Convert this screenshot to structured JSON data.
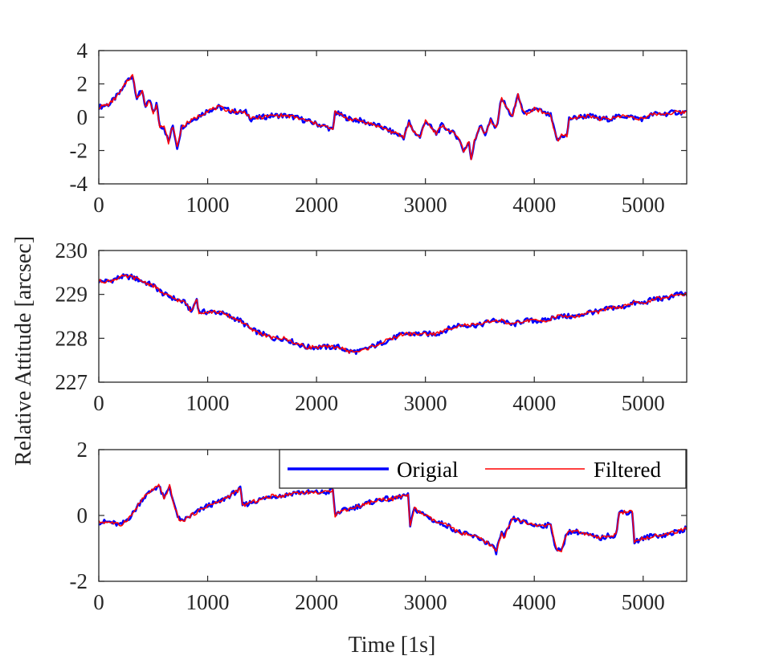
{
  "chart_data": {
    "type": "line",
    "ylabel": "Relative Attitude [arcsec]",
    "xlabel": "Time [1s]",
    "legend": {
      "placement": "top-right of bottom panel",
      "entries": [
        "Origial",
        "Filtered"
      ]
    },
    "colors": {
      "Origial": "#0000ff",
      "Filtered": "#ff0000"
    },
    "grid": false,
    "panels": [
      {
        "xlim": [
          0,
          5400
        ],
        "ylim": [
          -4,
          4
        ],
        "xticks": [
          0,
          1000,
          2000,
          3000,
          4000,
          5000
        ],
        "yticks": [
          -4,
          -2,
          0,
          2,
          4
        ],
        "series": [
          {
            "name": "Origial",
            "x": [
              0,
              100,
              200,
              260,
              310,
              350,
              400,
              430,
              470,
              500,
              530,
              560,
              600,
              640,
              680,
              720,
              760,
              800,
              850,
              900,
              1000,
              1100,
              1200,
              1300,
              1350,
              1400,
              1500,
              1600,
              1700,
              1800,
              1900,
              2000,
              2100,
              2150,
              2170,
              2200,
              2300,
              2400,
              2500,
              2600,
              2700,
              2800,
              2850,
              2870,
              2900,
              2950,
              3000,
              3050,
              3100,
              3150,
              3200,
              3300,
              3350,
              3400,
              3420,
              3450,
              3500,
              3550,
              3600,
              3650,
              3700,
              3750,
              3800,
              3850,
              3880,
              3920,
              3950,
              4000,
              4050,
              4100,
              4150,
              4200,
              4220,
              4250,
              4300,
              4320,
              4400,
              4500,
              4600,
              4700,
              4800,
              4900,
              5000,
              5100,
              5200,
              5300,
              5400
            ],
            "y": [
              0.6,
              0.8,
              1.5,
              2.2,
              2.5,
              1.2,
              1.6,
              0.6,
              1.0,
              0.2,
              0.8,
              -0.5,
              -0.6,
              -1.5,
              -0.5,
              -1.8,
              -0.6,
              -0.4,
              -0.2,
              0.0,
              0.4,
              0.6,
              0.4,
              0.3,
              0.3,
              -0.1,
              0.0,
              0.1,
              0.1,
              0.0,
              -0.2,
              -0.4,
              -0.6,
              -0.8,
              0.3,
              0.2,
              -0.1,
              -0.2,
              -0.4,
              -0.6,
              -0.9,
              -1.2,
              -0.3,
              -0.6,
              -0.9,
              -1.2,
              -0.2,
              -0.6,
              -1.0,
              -0.5,
              -0.7,
              -1.2,
              -2.0,
              -1.5,
              -2.6,
              -1.4,
              -0.5,
              -1.0,
              -0.2,
              -0.7,
              1.2,
              0.5,
              0.0,
              1.4,
              0.6,
              0.2,
              0.3,
              0.5,
              0.4,
              0.2,
              0.1,
              -1.2,
              -1.4,
              -1.1,
              -1.1,
              -0.1,
              0.0,
              0.1,
              -0.1,
              -0.1,
              0.1,
              0.0,
              -0.1,
              0.2,
              0.2,
              0.3,
              0.3
            ]
          }
        ]
      },
      {
        "xlim": [
          0,
          5400
        ],
        "ylim": [
          227,
          230
        ],
        "xticks": [
          0,
          1000,
          2000,
          3000,
          4000,
          5000
        ],
        "yticks": [
          227,
          228,
          229,
          230
        ],
        "series": [
          {
            "name": "Origial",
            "x": [
              0,
              100,
              200,
              300,
              400,
              500,
              600,
              700,
              800,
              850,
              900,
              920,
              1000,
              1100,
              1200,
              1300,
              1400,
              1500,
              1600,
              1700,
              1800,
              1900,
              2000,
              2100,
              2200,
              2300,
              2400,
              2500,
              2600,
              2700,
              2800,
              2900,
              3000,
              3100,
              3200,
              3300,
              3400,
              3500,
              3600,
              3700,
              3800,
              3900,
              4000,
              4100,
              4200,
              4300,
              4400,
              4500,
              4600,
              4700,
              4800,
              4900,
              5000,
              5100,
              5200,
              5300,
              5400
            ],
            "y": [
              229.3,
              229.3,
              229.4,
              229.4,
              229.3,
              229.2,
              229.0,
              228.9,
              228.8,
              228.6,
              228.9,
              228.6,
              228.6,
              228.6,
              228.5,
              228.4,
              228.2,
              228.1,
              228.0,
              228.0,
              227.9,
              227.8,
              227.8,
              227.8,
              227.8,
              227.7,
              227.7,
              227.8,
              227.9,
              228.0,
              228.1,
              228.1,
              228.1,
              228.1,
              228.2,
              228.3,
              228.3,
              228.3,
              228.4,
              228.4,
              228.3,
              228.4,
              228.4,
              228.4,
              228.5,
              228.5,
              228.5,
              228.6,
              228.6,
              228.7,
              228.7,
              228.8,
              228.8,
              228.9,
              228.9,
              229.0,
              229.0
            ]
          }
        ]
      },
      {
        "xlim": [
          0,
          5400
        ],
        "ylim": [
          -2,
          2
        ],
        "xticks": [
          0,
          1000,
          2000,
          3000,
          4000,
          5000
        ],
        "yticks": [
          -2,
          0,
          2
        ],
        "series": [
          {
            "name": "Origial",
            "x": [
              0,
              100,
              200,
              300,
              400,
              500,
              550,
              600,
              650,
              700,
              750,
              800,
              900,
              1000,
              1100,
              1200,
              1300,
              1320,
              1400,
              1500,
              1600,
              1700,
              1800,
              1900,
              2000,
              2100,
              2150,
              2170,
              2200,
              2300,
              2400,
              2500,
              2600,
              2700,
              2800,
              2840,
              2860,
              2900,
              3000,
              3100,
              3200,
              3300,
              3400,
              3500,
              3600,
              3650,
              3700,
              3720,
              3800,
              3900,
              4000,
              4100,
              4150,
              4200,
              4250,
              4300,
              4400,
              4500,
              4600,
              4700,
              4750,
              4780,
              4850,
              4900,
              4920,
              5000,
              5100,
              5200,
              5300,
              5400
            ],
            "y": [
              -0.2,
              -0.2,
              -0.3,
              0.0,
              0.5,
              0.8,
              0.9,
              0.5,
              0.9,
              0.2,
              -0.2,
              -0.1,
              0.1,
              0.3,
              0.4,
              0.6,
              0.8,
              0.3,
              0.4,
              0.5,
              0.6,
              0.6,
              0.7,
              0.7,
              0.7,
              0.7,
              0.8,
              0.0,
              0.1,
              0.2,
              0.3,
              0.4,
              0.5,
              0.5,
              0.6,
              0.6,
              -0.3,
              0.2,
              0.0,
              -0.2,
              -0.3,
              -0.5,
              -0.6,
              -0.7,
              -0.9,
              -1.1,
              -0.5,
              -0.7,
              -0.1,
              -0.2,
              -0.3,
              -0.3,
              -0.3,
              -1.0,
              -1.1,
              -0.5,
              -0.5,
              -0.6,
              -0.7,
              -0.6,
              -0.6,
              0.1,
              0.1,
              0.1,
              -0.8,
              -0.7,
              -0.6,
              -0.6,
              -0.5,
              -0.4
            ]
          }
        ]
      }
    ]
  }
}
